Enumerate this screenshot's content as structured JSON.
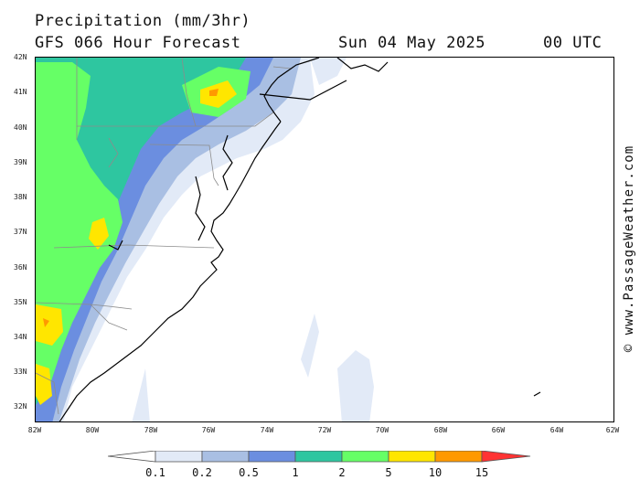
{
  "header": {
    "title": "Precipitation (mm/3hr)",
    "subtitle": "GFS 066 Hour Forecast",
    "date": "Sun 04 May 2025",
    "time": "00 UTC"
  },
  "credit": "© www.PassageWeather.com",
  "axes": {
    "lat_labels": [
      "42N",
      "41N",
      "40N",
      "39N",
      "38N",
      "37N",
      "36N",
      "35N",
      "34N",
      "33N",
      "32N"
    ],
    "lon_labels": [
      "82W",
      "80W",
      "78W",
      "76W",
      "74W",
      "72W",
      "70W",
      "68W",
      "66W",
      "64W",
      "62W"
    ]
  },
  "legend": {
    "labels": [
      "0.1",
      "0.2",
      "0.5",
      "1",
      "2",
      "5",
      "10",
      "15"
    ],
    "colors": [
      "#ffffff",
      "#e2eaf7",
      "#a9bfe3",
      "#6b8ee0",
      "#2ec6a0",
      "#66ff66",
      "#ffe600",
      "#ff9900",
      "#ff3333"
    ]
  },
  "map_colors": {
    "ocean": "#ffffff",
    "land": "#ffffff",
    "coastline": "#000000",
    "state_border": "#8c8c8c"
  }
}
